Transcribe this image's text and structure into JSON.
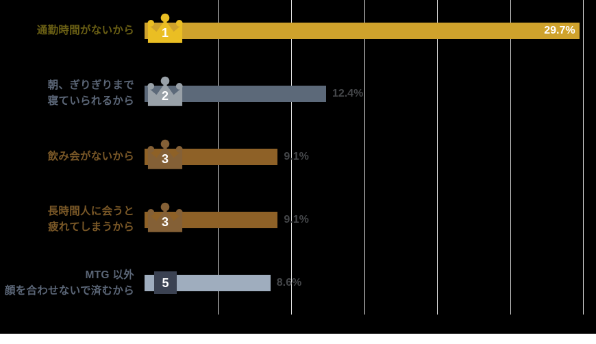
{
  "chart_data": {
    "type": "bar",
    "orientation": "horizontal",
    "title": "",
    "unit": "%",
    "xlim": [
      0,
      30
    ],
    "gridlines_every_percent": 5,
    "legend": "none",
    "grid": "vertical-lines-on",
    "categories": [
      "通勤時間がないから",
      "朝、ぎりぎりまで寝ていられるから",
      "飲み会がないから",
      "長時間人に会うと疲れてしまうから",
      "MTG 以外顔を合わせないで済むから"
    ],
    "values": [
      29.7,
      12.4,
      9.1,
      9.1,
      8.6
    ],
    "rows": [
      {
        "rank": "1",
        "badge": "gold-crown",
        "label_lines": [
          "通勤時間がないから"
        ],
        "value": 29.7,
        "value_label": "29.7%"
      },
      {
        "rank": "2",
        "badge": "silver-crown",
        "label_lines": [
          "朝、ぎりぎりまで",
          "寝ていられるから"
        ],
        "value": 12.4,
        "value_label": "12.4%"
      },
      {
        "rank": "3",
        "badge": "bronze-crown",
        "label_lines": [
          "飲み会がないから"
        ],
        "value": 9.1,
        "value_label": "9.1%"
      },
      {
        "rank": "3",
        "badge": "bronze-crown",
        "label_lines": [
          "長時間人に会うと",
          "疲れてしまうから"
        ],
        "value": 9.1,
        "value_label": "9.1%"
      },
      {
        "rank": "5",
        "badge": "dark-square",
        "label_lines": [
          "MTG 以外",
          "顔を合わせないで済むから"
        ],
        "value": 8.6,
        "value_label": "8.6%"
      }
    ],
    "colors": {
      "background": "#000000",
      "bottom_strip": "#ffffff",
      "gridline": "#e0e0e0",
      "rank1_bar": "#cfa22c",
      "rank1_crown": "#eabe23",
      "rank1_label": "#6a5f14",
      "rank2_bar": "#5c6979",
      "rank2_crown": "#99a1a8",
      "rank2_label": "#5b6677",
      "rank3_bar": "#8e6127",
      "rank3_crown": "#846036",
      "rank3_label": "#7a5827",
      "rank5_bar": "#9fadbe",
      "rank5_badge": "#3b4252",
      "rank5_label": "#5b6677",
      "value_label_inside": "#ffffff",
      "value_label_outside": "#45474a",
      "rank_number": "#ffffff"
    }
  }
}
